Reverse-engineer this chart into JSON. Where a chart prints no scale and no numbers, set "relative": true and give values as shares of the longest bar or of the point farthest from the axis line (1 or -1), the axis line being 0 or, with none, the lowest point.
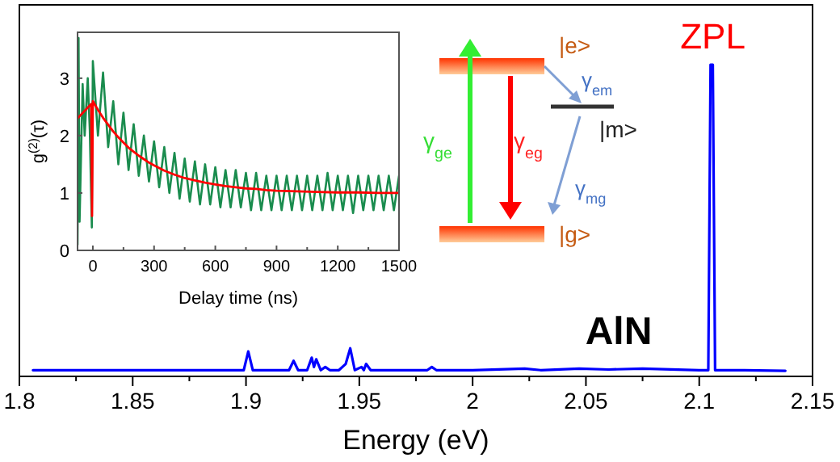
{
  "chart_data": [
    {
      "type": "line",
      "relative": true,
      "xlabel": "Energy (eV)",
      "xlim": [
        1.8,
        2.15
      ],
      "xticks": [
        1.8,
        {
          "value": 1.825,
          "label": null
        },
        1.85,
        {
          "value": 1.875,
          "label": null
        },
        1.9,
        {
          "value": 1.925,
          "label": null
        },
        1.95,
        {
          "value": 1.975,
          "label": null
        },
        2,
        {
          "value": 2.025,
          "label": null
        },
        2.05,
        {
          "value": 2.075,
          "label": null
        },
        2.1,
        {
          "value": 2.125,
          "label": null
        },
        2.15
      ],
      "annotations": [
        {
          "text": "ZPL",
          "x": 2.106,
          "y": 1
        },
        "AlN",
        "|e>",
        "|m>",
        "|g>",
        "γ$_{ge}$",
        "γ$_{eg}$",
        "γ$_{em}$",
        "γ$_{mg}$"
      ],
      "series": [
        {
          "color": "#0000ff",
          "x": [
            1.806,
            1.83,
            1.86,
            1.88,
            1.895,
            1.899,
            1.901,
            1.903,
            1.91,
            1.919,
            1.921,
            1.923,
            1.927,
            1.929,
            1.93,
            1.931,
            1.933,
            1.935,
            1.937,
            1.941,
            1.944,
            1.946,
            1.948,
            1.951,
            1.952,
            1.953,
            1.955,
            1.96,
            1.98,
            1.982,
            1.984,
            2.0,
            2.023,
            2.03,
            2.047,
            2.06,
            2.075,
            2.1,
            2.104,
            2.105,
            2.106,
            2.107,
            2.12,
            2.138
          ],
          "values": [
            0.02,
            0.02,
            0.02,
            0.02,
            0.02,
            0.02,
            0.08,
            0.02,
            0.02,
            0.02,
            0.05,
            0.02,
            0.02,
            0.06,
            0.03,
            0.055,
            0.02,
            0.03,
            0.02,
            0.02,
            0.04,
            0.09,
            0.02,
            0.03,
            0.02,
            0.04,
            0.02,
            0.02,
            0.02,
            0.03,
            0.02,
            0.02,
            0.025,
            0.02,
            0.025,
            0.022,
            0.025,
            0.02,
            0.02,
            1,
            1,
            0.02,
            0.02,
            0.018
          ]
        }
      ]
    },
    {
      "type": "line",
      "xlabel": "Delay time (ns)",
      "ylabel": "g$^{(2)}$(τ)",
      "xlim": [
        -75,
        1500
      ],
      "ylim": [
        0,
        3.8
      ],
      "xticks": [
        0,
        {
          "value": 150,
          "label": null
        },
        300,
        {
          "value": 450,
          "label": null
        },
        600,
        {
          "value": 750,
          "label": null
        },
        900,
        {
          "value": 1050,
          "label": null
        },
        1200,
        {
          "value": 1350,
          "label": null
        },
        1500
      ],
      "yticks": [
        0,
        1,
        2,
        3
      ],
      "series": [
        {
          "color": "#1a8c4e",
          "x": [
            -75,
            -70,
            -65,
            -50,
            -40,
            -25,
            -15,
            -5,
            0,
            25,
            50,
            75,
            100,
            125,
            150,
            175,
            200,
            225,
            250,
            275,
            300,
            325,
            350,
            375,
            400,
            425,
            450,
            475,
            500,
            525,
            550,
            575,
            600,
            625,
            650,
            675,
            700,
            725,
            750,
            775,
            800,
            825,
            850,
            875,
            900,
            925,
            950,
            975,
            1000,
            1025,
            1050,
            1075,
            1100,
            1125,
            1150,
            1175,
            1200,
            1225,
            1250,
            1275,
            1300,
            1325,
            1350,
            1375,
            1400,
            1425,
            1450,
            1475,
            1500
          ],
          "values": [
            0.1,
            3.7,
            0.5,
            2.9,
            2.0,
            3.0,
            2.1,
            0.4,
            3.3,
            2.0,
            3.1,
            1.8,
            2.6,
            1.5,
            2.4,
            1.4,
            2.2,
            1.3,
            2.0,
            1.2,
            1.9,
            1.1,
            1.8,
            1.0,
            1.7,
            0.9,
            1.6,
            0.85,
            1.55,
            0.8,
            1.5,
            0.8,
            1.45,
            0.75,
            1.4,
            0.75,
            1.4,
            0.75,
            1.35,
            0.7,
            1.35,
            0.7,
            1.3,
            0.7,
            1.3,
            0.7,
            1.3,
            0.7,
            1.3,
            0.7,
            1.3,
            0.7,
            1.3,
            0.7,
            1.35,
            0.7,
            1.3,
            0.7,
            1.3,
            0.65,
            1.3,
            0.7,
            1.3,
            0.7,
            1.3,
            0.7,
            1.3,
            0.7,
            1.3
          ]
        },
        {
          "color": "#ff0000",
          "x": [
            -75,
            -8,
            -4,
            0,
            25,
            50,
            75,
            100,
            125,
            150,
            175,
            200,
            225,
            250,
            275,
            300,
            350,
            400,
            450,
            500,
            550,
            600,
            650,
            700,
            750,
            800,
            850,
            900,
            1000,
            1100,
            1200,
            1300,
            1400,
            1500
          ],
          "values": [
            2.3,
            2.55,
            0.6,
            2.6,
            2.45,
            2.31,
            2.19,
            2.07,
            1.97,
            1.88,
            1.79,
            1.72,
            1.65,
            1.59,
            1.53,
            1.48,
            1.39,
            1.32,
            1.26,
            1.22,
            1.18,
            1.15,
            1.12,
            1.1,
            1.08,
            1.07,
            1.05,
            1.04,
            1.03,
            1.02,
            1.01,
            1.01,
            1.0,
            1.0
          ]
        }
      ]
    }
  ]
}
